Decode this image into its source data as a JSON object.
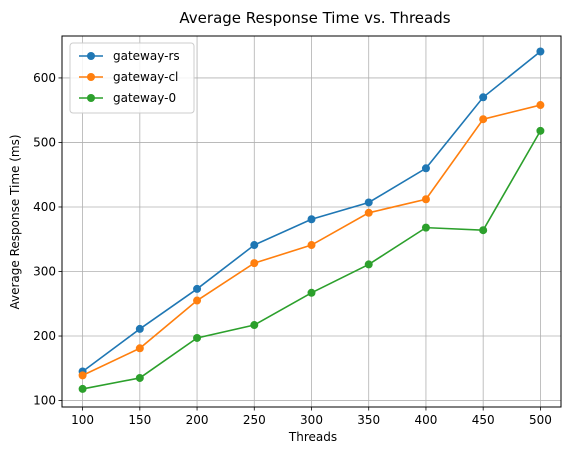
{
  "chart_data": {
    "type": "line",
    "title": "Average Response Time vs. Threads",
    "xlabel": "Threads",
    "ylabel": "Average Response Time (ms)",
    "x": [
      100,
      150,
      200,
      250,
      300,
      350,
      400,
      450,
      500
    ],
    "xlim": [
      82,
      518
    ],
    "ylim": [
      90,
      665
    ],
    "xticks": [
      100,
      150,
      200,
      250,
      300,
      350,
      400,
      450,
      500
    ],
    "yticks": [
      100,
      200,
      300,
      400,
      500,
      600
    ],
    "grid": true,
    "legend_position": "top-left",
    "series": [
      {
        "name": "gateway-rs",
        "color": "#1f77b4",
        "values": [
          145,
          211,
          273,
          341,
          381,
          407,
          460,
          570,
          641
        ]
      },
      {
        "name": "gateway-cl",
        "color": "#ff7f0e",
        "values": [
          139,
          181,
          255,
          313,
          341,
          391,
          412,
          536,
          558
        ]
      },
      {
        "name": "gateway-0",
        "color": "#2ca02c",
        "values": [
          118,
          135,
          197,
          217,
          267,
          311,
          368,
          364,
          518
        ]
      }
    ]
  }
}
